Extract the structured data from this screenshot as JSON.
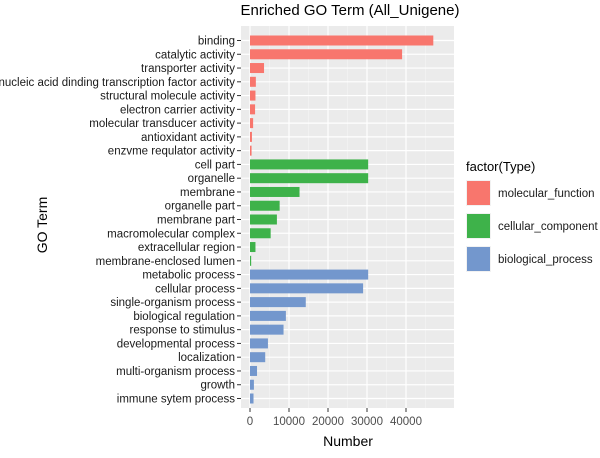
{
  "chart_data": {
    "type": "bar",
    "orientation": "horizontal",
    "title": "Enriched GO Term (All_Unigene)",
    "xlabel": "Number",
    "ylabel": "GO Term",
    "xlim": [
      0,
      49000
    ],
    "x_ticks": [
      0,
      10000,
      20000,
      30000,
      40000
    ],
    "x_tick_labels": [
      "0",
      "10000",
      "20000",
      "30000",
      "40000"
    ],
    "grid": true,
    "legend": {
      "title": "factor(Type)",
      "placement": "right",
      "items": [
        {
          "name": "molecular_function",
          "color": "#F8766D"
        },
        {
          "name": "cellular_component",
          "color": "#3EB24A"
        },
        {
          "name": "biological_process",
          "color": "#7397CD"
        }
      ]
    },
    "series": [
      {
        "name": "molecular_function",
        "color": "#F8766D",
        "categories": [
          "binding",
          "catalytic activity",
          "transporter activity",
          "nucleic acid dinding transcription factor activity",
          "structural molecule activity",
          "electron carrier activity",
          "molecular transducer activity",
          "antioxidant activity",
          "enzvme requlator activity"
        ],
        "values": [
          47000,
          39000,
          3600,
          1500,
          1400,
          1300,
          800,
          500,
          400
        ]
      },
      {
        "name": "cellular_component",
        "color": "#3EB24A",
        "categories": [
          "cell part",
          "organelle",
          "membrane",
          "organelle part",
          "membrane part",
          "macromolecular complex",
          "extracellular region",
          "membrane-enclosed lumen"
        ],
        "values": [
          30300,
          30300,
          12700,
          7600,
          6900,
          5300,
          1400,
          300
        ]
      },
      {
        "name": "biological_process",
        "color": "#7397CD",
        "categories": [
          "metabolic process",
          "cellular process",
          "single-organism process",
          "biological regulation",
          "response to stimulus",
          "developmental process",
          "localization",
          "multi-organism process",
          "growth",
          "immune sytem process"
        ],
        "values": [
          30300,
          29000,
          14300,
          9200,
          8600,
          4600,
          3900,
          1800,
          1000,
          900
        ]
      }
    ]
  }
}
